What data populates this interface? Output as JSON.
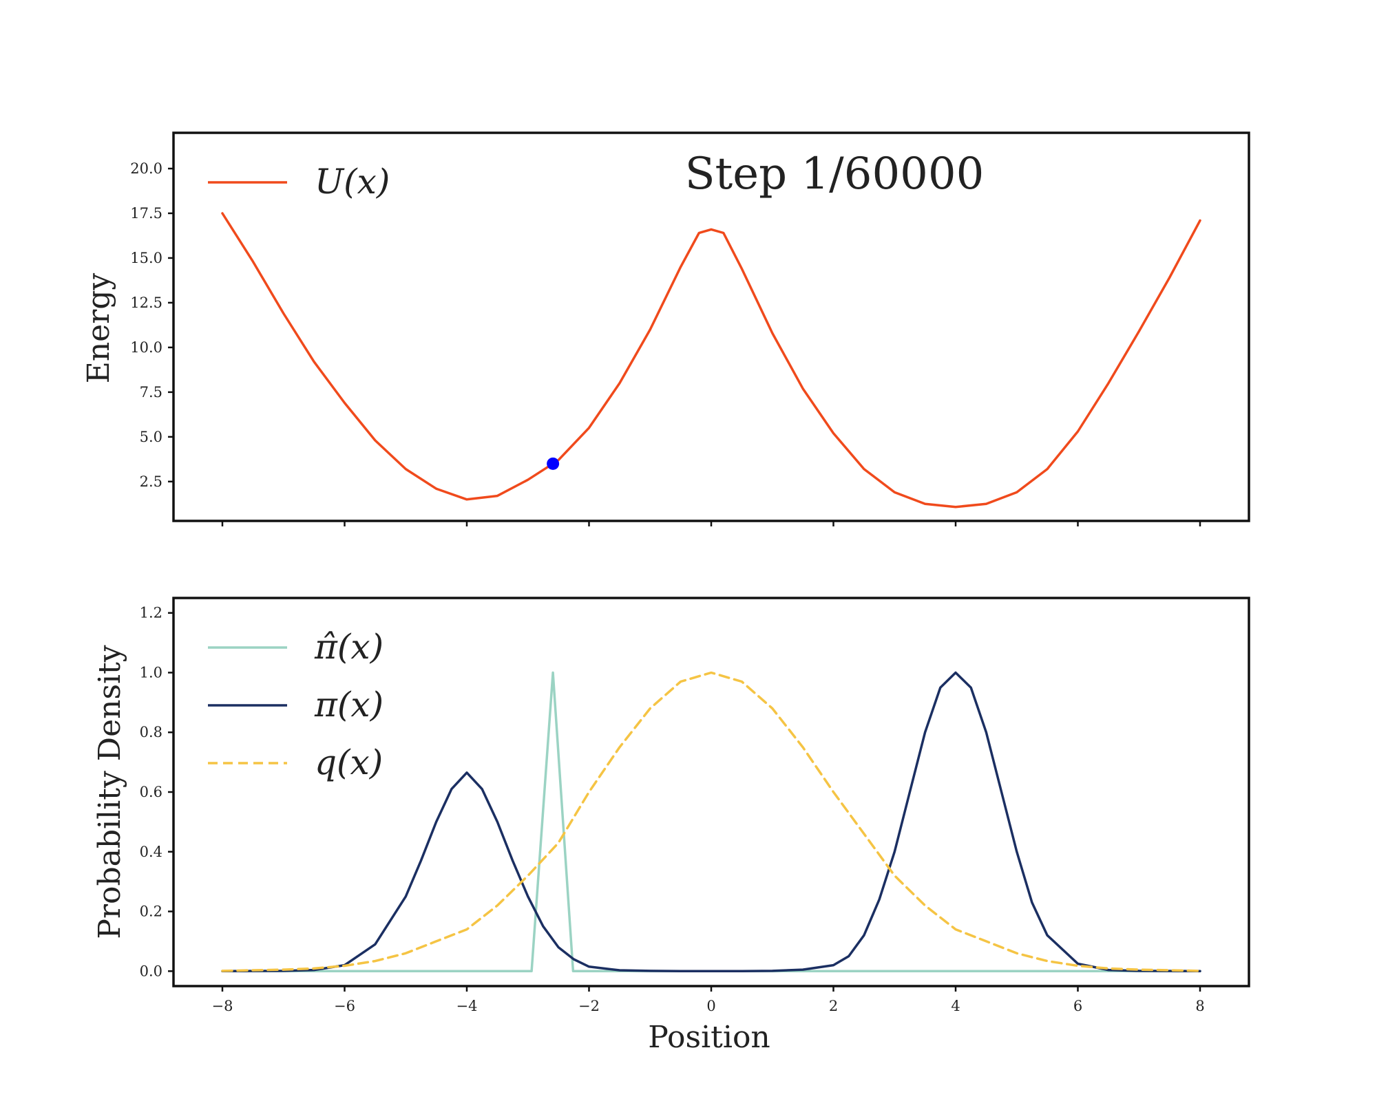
{
  "figure": {
    "step_label": "Step 1/60000",
    "colors": {
      "U": "#f04a1c",
      "pi_hat": "#9bd3c3",
      "pi": "#1b2f62",
      "q": "#f5c444",
      "point": "#0000ff"
    }
  },
  "chart_data": [
    {
      "type": "line",
      "panel": "energy",
      "xlabel": "",
      "ylabel": "Energy",
      "xlim": [
        -8.8,
        8.8
      ],
      "ylim": [
        0.3,
        22.0
      ],
      "xticks": [
        -8,
        -6,
        -4,
        -2,
        0,
        2,
        4,
        6,
        8
      ],
      "yticks": [
        2.5,
        5.0,
        7.5,
        10.0,
        12.5,
        15.0,
        17.5,
        20.0
      ],
      "ytick_labels": [
        "2.5",
        "5.0",
        "7.5",
        "10.0",
        "12.5",
        "15.0",
        "17.5",
        "20.0"
      ],
      "x_tick_labels_visible": false,
      "legend_position": "top-left",
      "series": [
        {
          "name": "U(x)",
          "style": "solid",
          "x": [
            -8,
            -7.5,
            -7,
            -6.5,
            -6,
            -5.5,
            -5,
            -4.5,
            -4,
            -3.5,
            -3,
            -2.59,
            -2.5,
            -2,
            -1.5,
            -1,
            -0.5,
            -0.2,
            0,
            0.2,
            0.5,
            1,
            1.5,
            2,
            2.5,
            3,
            3.5,
            4,
            4.5,
            5,
            5.5,
            6,
            6.5,
            7,
            7.5,
            8
          ],
          "y": [
            17.5,
            14.8,
            11.9,
            9.2,
            6.9,
            4.8,
            3.2,
            2.1,
            1.5,
            1.7,
            2.6,
            3.5,
            3.7,
            5.5,
            8.0,
            11.0,
            14.5,
            16.4,
            16.6,
            16.4,
            14.4,
            10.8,
            7.7,
            5.2,
            3.2,
            1.9,
            1.25,
            1.08,
            1.25,
            1.9,
            3.2,
            5.3,
            8.0,
            10.9,
            13.9,
            17.1
          ]
        }
      ],
      "current_point": {
        "x": -2.59,
        "y": 3.5
      }
    },
    {
      "type": "line",
      "panel": "density",
      "xlabel": "Position",
      "ylabel": "Probability Density",
      "xlim": [
        -8.8,
        8.8
      ],
      "ylim": [
        -0.05,
        1.25
      ],
      "xticks": [
        -8,
        -6,
        -4,
        -2,
        0,
        2,
        4,
        6,
        8
      ],
      "xtick_labels": [
        "−8",
        "−6",
        "−4",
        "−2",
        "0",
        "2",
        "4",
        "6",
        "8"
      ],
      "yticks": [
        0.0,
        0.2,
        0.4,
        0.6,
        0.8,
        1.0,
        1.2
      ],
      "ytick_labels": [
        "0.0",
        "0.2",
        "0.4",
        "0.6",
        "0.8",
        "1.0",
        "1.2"
      ],
      "legend_position": "top-left",
      "series": [
        {
          "name": "π̂(x)",
          "style": "solid",
          "x": [
            -8,
            -2.94,
            -2.59,
            -2.26,
            8
          ],
          "y": [
            0,
            0,
            1.0,
            0,
            0
          ]
        },
        {
          "name": "π(x)",
          "style": "solid",
          "x": [
            -8,
            -7,
            -6.5,
            -6,
            -5.5,
            -5,
            -4.75,
            -4.5,
            -4.25,
            -4,
            -3.75,
            -3.5,
            -3.25,
            -3,
            -2.75,
            -2.5,
            -2.25,
            -2,
            -1.5,
            -1,
            -0.5,
            0,
            0.5,
            1,
            1.5,
            2,
            2.25,
            2.5,
            2.75,
            3,
            3.25,
            3.5,
            3.75,
            4,
            4.25,
            4.5,
            4.75,
            5,
            5.25,
            5.5,
            6,
            6.5,
            7,
            8
          ],
          "y": [
            0,
            0.001,
            0.004,
            0.02,
            0.09,
            0.25,
            0.37,
            0.5,
            0.61,
            0.665,
            0.61,
            0.5,
            0.37,
            0.25,
            0.15,
            0.08,
            0.04,
            0.015,
            0.003,
            0.001,
            0,
            0,
            0,
            0.001,
            0.005,
            0.02,
            0.05,
            0.12,
            0.24,
            0.4,
            0.6,
            0.8,
            0.95,
            1.0,
            0.95,
            0.8,
            0.6,
            0.4,
            0.23,
            0.12,
            0.025,
            0.004,
            0.001,
            0
          ]
        },
        {
          "name": "q(x)",
          "style": "dashed",
          "x": [
            -8,
            -7,
            -6.5,
            -6,
            -5.5,
            -5,
            -4.5,
            -4,
            -3.5,
            -3,
            -2.5,
            -2,
            -1.5,
            -1,
            -0.5,
            0,
            0.5,
            1,
            1.5,
            2,
            2.5,
            3,
            3.5,
            4,
            4.5,
            5,
            5.5,
            6,
            6.5,
            7,
            8
          ],
          "y": [
            0.001,
            0.005,
            0.009,
            0.018,
            0.034,
            0.06,
            0.1,
            0.14,
            0.22,
            0.32,
            0.43,
            0.6,
            0.75,
            0.88,
            0.97,
            1.0,
            0.97,
            0.88,
            0.75,
            0.6,
            0.46,
            0.32,
            0.22,
            0.14,
            0.1,
            0.06,
            0.034,
            0.018,
            0.009,
            0.005,
            0.001
          ]
        }
      ]
    }
  ]
}
